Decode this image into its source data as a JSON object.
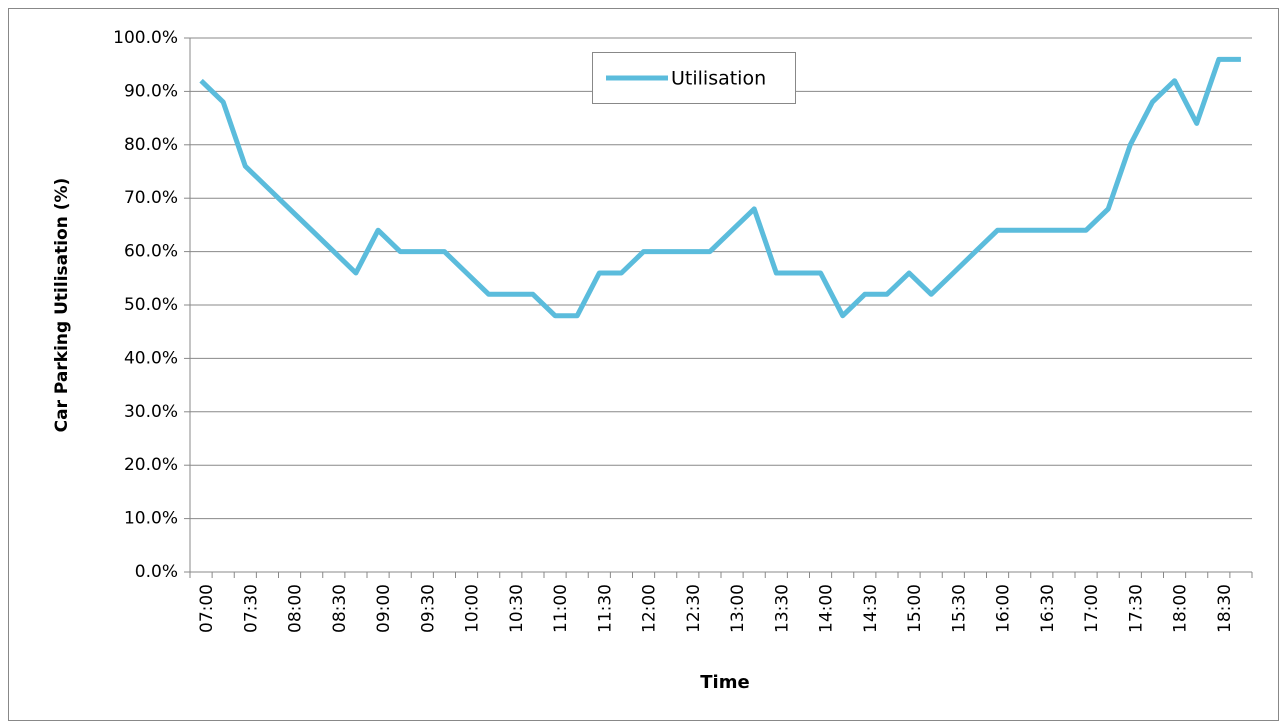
{
  "chart_data": {
    "type": "line",
    "x_label": "Time",
    "y_label": "Car Parking  Utilisation  (%)",
    "categories": [
      "07:00",
      null,
      "07:30",
      null,
      "08:00",
      null,
      "08:30",
      null,
      "09:00",
      null,
      "09:30",
      null,
      "10:00",
      null,
      "10:30",
      null,
      "11:00",
      null,
      "11:30",
      null,
      "12:00",
      null,
      "12:30",
      null,
      "13:00",
      null,
      "13:30",
      null,
      "14:00",
      null,
      "14:30",
      null,
      "15:00",
      null,
      "15:30",
      null,
      "16:00",
      null,
      "16:30",
      null,
      "17:00",
      null,
      "17:30",
      null,
      "18:00",
      null,
      "18:30",
      null
    ],
    "series": [
      {
        "name": "Utilisation",
        "color": "#5bbcdc",
        "values": [
          92,
          88,
          76,
          72,
          68,
          64,
          60,
          56,
          64,
          60,
          60,
          60,
          56,
          52,
          52,
          52,
          48,
          48,
          56,
          56,
          60,
          60,
          60,
          60,
          64,
          68,
          56,
          56,
          56,
          48,
          52,
          52,
          56,
          52,
          56,
          60,
          64,
          64,
          64,
          64,
          64,
          68,
          80,
          88,
          92,
          84,
          96,
          96
        ]
      }
    ],
    "ylim": [
      0,
      100
    ],
    "yticks": [
      {
        "value": 0,
        "label": "0.0%"
      },
      {
        "value": 10,
        "label": "10.0%"
      },
      {
        "value": 20,
        "label": "20.0%"
      },
      {
        "value": 30,
        "label": "30.0%"
      },
      {
        "value": 40,
        "label": "40.0%"
      },
      {
        "value": 50,
        "label": "50.0%"
      },
      {
        "value": 60,
        "label": "60.0%"
      },
      {
        "value": 70,
        "label": "70.0%"
      },
      {
        "value": 80,
        "label": "80.0%"
      },
      {
        "value": 90,
        "label": "90.0%"
      },
      {
        "value": 100,
        "label": "100.0%"
      }
    ],
    "grid": true,
    "legend": "top"
  }
}
